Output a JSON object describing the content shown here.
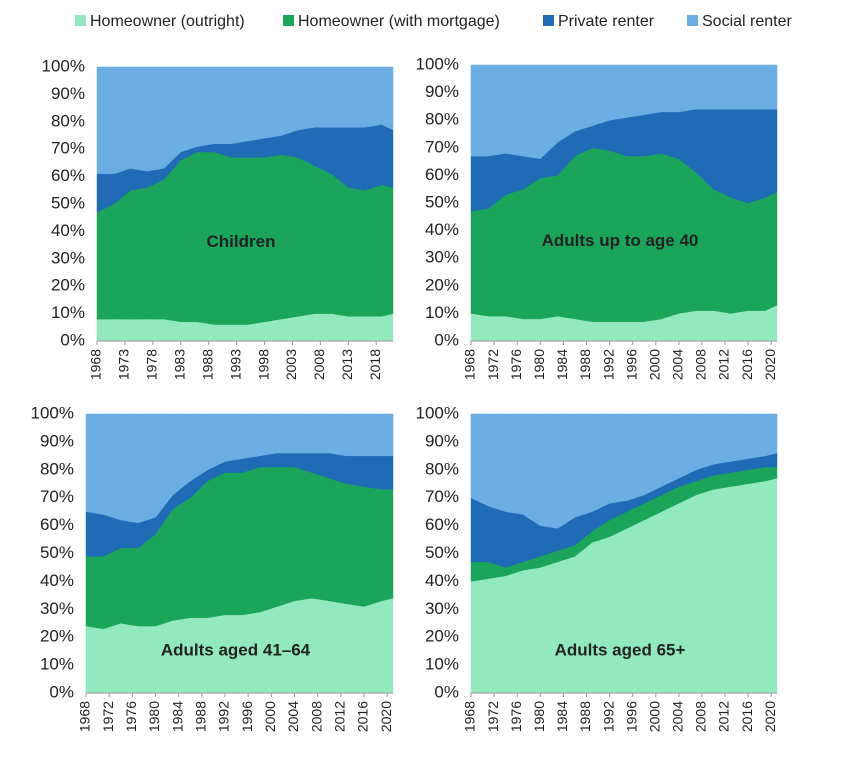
{
  "chart_data": [
    {
      "type": "area",
      "title": "Children",
      "x": [
        1968,
        1971,
        1974,
        1977,
        1980,
        1983,
        1986,
        1989,
        1992,
        1995,
        1998,
        2001,
        2004,
        2007,
        2010,
        2013,
        2016,
        2019,
        2021
      ],
      "series": [
        {
          "name": "Homeowner (outright)",
          "color": "#93e9be",
          "values": [
            8,
            8,
            8,
            8,
            8,
            7,
            7,
            6,
            6,
            6,
            7,
            8,
            9,
            10,
            10,
            9,
            9,
            9,
            10
          ]
        },
        {
          "name": "Homeowner (with mortgage)",
          "color": "#1aa55a",
          "values": [
            39,
            42,
            47,
            48,
            51,
            59,
            62,
            63,
            61,
            61,
            60,
            60,
            58,
            54,
            51,
            47,
            46,
            48,
            46
          ]
        },
        {
          "name": "Private renter",
          "color": "#1f6bb5",
          "values": [
            14,
            11,
            8,
            6,
            4,
            3,
            2,
            3,
            5,
            6,
            7,
            7,
            10,
            14,
            17,
            22,
            23,
            22,
            21
          ]
        },
        {
          "name": "Social renter",
          "color": "#6aaee3",
          "values": [
            39,
            39,
            37,
            38,
            37,
            31,
            29,
            28,
            28,
            27,
            26,
            25,
            23,
            22,
            22,
            22,
            22,
            21,
            23
          ]
        }
      ],
      "xlim": [
        1968,
        2021
      ],
      "xticks": [
        1968,
        1973,
        1978,
        1983,
        1988,
        1993,
        1998,
        2003,
        2008,
        2013,
        2018
      ],
      "ylim": [
        0,
        100
      ],
      "yticks": [
        {
          "value": 0,
          "label": "0%"
        },
        {
          "value": 10,
          "label": "10%"
        },
        {
          "value": 20,
          "label": "20%"
        },
        {
          "value": 30,
          "label": "30%"
        },
        {
          "value": 40,
          "label": "40%"
        },
        {
          "value": 50,
          "label": "50%"
        },
        {
          "value": 60,
          "label": "60%"
        },
        {
          "value": 70,
          "label": "70%"
        },
        {
          "value": 80,
          "label": "80%"
        },
        {
          "value": 90,
          "label": "90%"
        },
        {
          "value": 100,
          "label": "100%"
        }
      ]
    },
    {
      "type": "area",
      "title": "Adults up to age 40",
      "x": [
        1968,
        1971,
        1974,
        1977,
        1980,
        1983,
        1986,
        1989,
        1992,
        1995,
        1998,
        2001,
        2004,
        2007,
        2010,
        2013,
        2016,
        2019,
        2021
      ],
      "series": [
        {
          "name": "Homeowner (outright)",
          "color": "#93e9be",
          "values": [
            10,
            9,
            9,
            8,
            8,
            9,
            8,
            7,
            7,
            7,
            7,
            8,
            10,
            11,
            11,
            10,
            11,
            11,
            13
          ]
        },
        {
          "name": "Homeowner (with mortgage)",
          "color": "#1aa55a",
          "values": [
            37,
            39,
            44,
            47,
            51,
            51,
            59,
            63,
            62,
            60,
            60,
            60,
            56,
            50,
            44,
            42,
            39,
            41,
            41
          ]
        },
        {
          "name": "Private renter",
          "color": "#1f6bb5",
          "values": [
            20,
            19,
            15,
            12,
            7,
            12,
            9,
            8,
            11,
            14,
            15,
            15,
            17,
            23,
            29,
            32,
            34,
            32,
            30
          ]
        },
        {
          "name": "Social renter",
          "color": "#6aaee3",
          "values": [
            33,
            33,
            32,
            33,
            34,
            28,
            24,
            22,
            20,
            19,
            18,
            17,
            17,
            16,
            16,
            16,
            16,
            16,
            16
          ]
        }
      ],
      "xlim": [
        1968,
        2021
      ],
      "xticks": [
        1968,
        1972,
        1976,
        1980,
        1984,
        1988,
        1992,
        1996,
        2000,
        2004,
        2008,
        2012,
        2016,
        2020
      ],
      "ylim": [
        0,
        100
      ],
      "yticks": [
        {
          "value": 0,
          "label": "0%"
        },
        {
          "value": 10,
          "label": "10%"
        },
        {
          "value": 20,
          "label": "20%"
        },
        {
          "value": 30,
          "label": "30%"
        },
        {
          "value": 40,
          "label": "40%"
        },
        {
          "value": 50,
          "label": "50%"
        },
        {
          "value": 60,
          "label": "60%"
        },
        {
          "value": 70,
          "label": "70%"
        },
        {
          "value": 80,
          "label": "80%"
        },
        {
          "value": 90,
          "label": "90%"
        },
        {
          "value": 100,
          "label": "100%"
        }
      ]
    },
    {
      "type": "area",
      "title": "Adults aged 41–64",
      "x": [
        1968,
        1971,
        1974,
        1977,
        1980,
        1983,
        1986,
        1989,
        1992,
        1995,
        1998,
        2001,
        2004,
        2007,
        2010,
        2013,
        2016,
        2019,
        2021
      ],
      "series": [
        {
          "name": "Homeowner (outright)",
          "color": "#93e9be",
          "values": [
            24,
            23,
            25,
            24,
            24,
            26,
            27,
            27,
            28,
            28,
            29,
            31,
            33,
            34,
            33,
            32,
            31,
            33,
            34
          ]
        },
        {
          "name": "Homeowner (with mortgage)",
          "color": "#1aa55a",
          "values": [
            25,
            26,
            27,
            28,
            33,
            40,
            43,
            49,
            51,
            51,
            52,
            50,
            48,
            45,
            44,
            43,
            43,
            40,
            39
          ]
        },
        {
          "name": "Private renter",
          "color": "#1f6bb5",
          "values": [
            16,
            15,
            10,
            9,
            6,
            5,
            6,
            4,
            4,
            5,
            4,
            5,
            5,
            7,
            9,
            10,
            11,
            12,
            12
          ]
        },
        {
          "name": "Social renter",
          "color": "#6aaee3",
          "values": [
            35,
            36,
            38,
            39,
            37,
            29,
            24,
            20,
            17,
            16,
            15,
            14,
            14,
            14,
            14,
            15,
            15,
            15,
            15
          ]
        }
      ],
      "xlim": [
        1968,
        2021
      ],
      "xticks": [
        1968,
        1972,
        1976,
        1980,
        1984,
        1988,
        1992,
        1996,
        2000,
        2004,
        2008,
        2012,
        2016,
        2020
      ],
      "ylim": [
        0,
        100
      ],
      "yticks": [
        {
          "value": 0,
          "label": "0%"
        },
        {
          "value": 10,
          "label": "10%"
        },
        {
          "value": 20,
          "label": "20%"
        },
        {
          "value": 30,
          "label": "30%"
        },
        {
          "value": 40,
          "label": "40%"
        },
        {
          "value": 50,
          "label": "50%"
        },
        {
          "value": 60,
          "label": "60%"
        },
        {
          "value": 70,
          "label": "70%"
        },
        {
          "value": 80,
          "label": "80%"
        },
        {
          "value": 90,
          "label": "90%"
        },
        {
          "value": 100,
          "label": "100%"
        }
      ]
    },
    {
      "type": "area",
      "title": "Adults aged 65+",
      "x": [
        1968,
        1971,
        1974,
        1977,
        1980,
        1983,
        1986,
        1989,
        1992,
        1995,
        1998,
        2001,
        2004,
        2007,
        2010,
        2013,
        2016,
        2019,
        2021
      ],
      "series": [
        {
          "name": "Homeowner (outright)",
          "color": "#93e9be",
          "values": [
            40,
            41,
            42,
            44,
            45,
            47,
            49,
            54,
            56,
            59,
            62,
            65,
            68,
            71,
            73,
            74,
            75,
            76,
            77
          ]
        },
        {
          "name": "Homeowner (with mortgage)",
          "color": "#1aa55a",
          "values": [
            7,
            6,
            3,
            3,
            4,
            4,
            4,
            4,
            6,
            6,
            6,
            6,
            6,
            5,
            5,
            5,
            5,
            5,
            4
          ]
        },
        {
          "name": "Private renter",
          "color": "#1f6bb5",
          "values": [
            23,
            20,
            20,
            17,
            11,
            8,
            10,
            7,
            6,
            4,
            3,
            3,
            3,
            4,
            4,
            4,
            4,
            4,
            5
          ]
        },
        {
          "name": "Social renter",
          "color": "#6aaee3",
          "values": [
            30,
            33,
            35,
            36,
            40,
            41,
            37,
            35,
            32,
            31,
            29,
            26,
            23,
            20,
            18,
            17,
            16,
            15,
            14
          ]
        }
      ],
      "xlim": [
        1968,
        2021
      ],
      "xticks": [
        1968,
        1972,
        1976,
        1980,
        1984,
        1988,
        1992,
        1996,
        2000,
        2004,
        2008,
        2012,
        2016,
        2020
      ],
      "ylim": [
        0,
        100
      ],
      "yticks": [
        {
          "value": 0,
          "label": "0%"
        },
        {
          "value": 10,
          "label": "10%"
        },
        {
          "value": 20,
          "label": "20%"
        },
        {
          "value": 30,
          "label": "30%"
        },
        {
          "value": 40,
          "label": "40%"
        },
        {
          "value": 50,
          "label": "50%"
        },
        {
          "value": 60,
          "label": "60%"
        },
        {
          "value": 70,
          "label": "70%"
        },
        {
          "value": 80,
          "label": "80%"
        },
        {
          "value": 90,
          "label": "90%"
        },
        {
          "value": 100,
          "label": "100%"
        }
      ]
    }
  ]
}
